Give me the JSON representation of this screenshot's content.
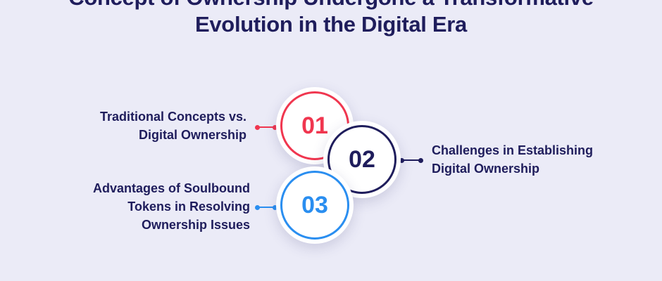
{
  "title": {
    "line1": "Concept of Ownership Undergone a Transformative",
    "line2": "Evolution in the Digital Era"
  },
  "colors": {
    "background": "#ebebf7",
    "navy": "#1f1d5c",
    "red": "#f0364f",
    "blue": "#2a8ef0"
  },
  "items": [
    {
      "number": "01",
      "label_line1": "Traditional Concepts vs.",
      "label_line2": "Digital Ownership",
      "color": "#f0364f"
    },
    {
      "number": "02",
      "label_line1": "Challenges in Establishing",
      "label_line2": "Digital Ownership",
      "color": "#1f1d5c"
    },
    {
      "number": "03",
      "label_line1": "Advantages of Soulbound",
      "label_line2": "Tokens in Resolving",
      "label_line3": "Ownership Issues",
      "color": "#2a8ef0"
    }
  ]
}
